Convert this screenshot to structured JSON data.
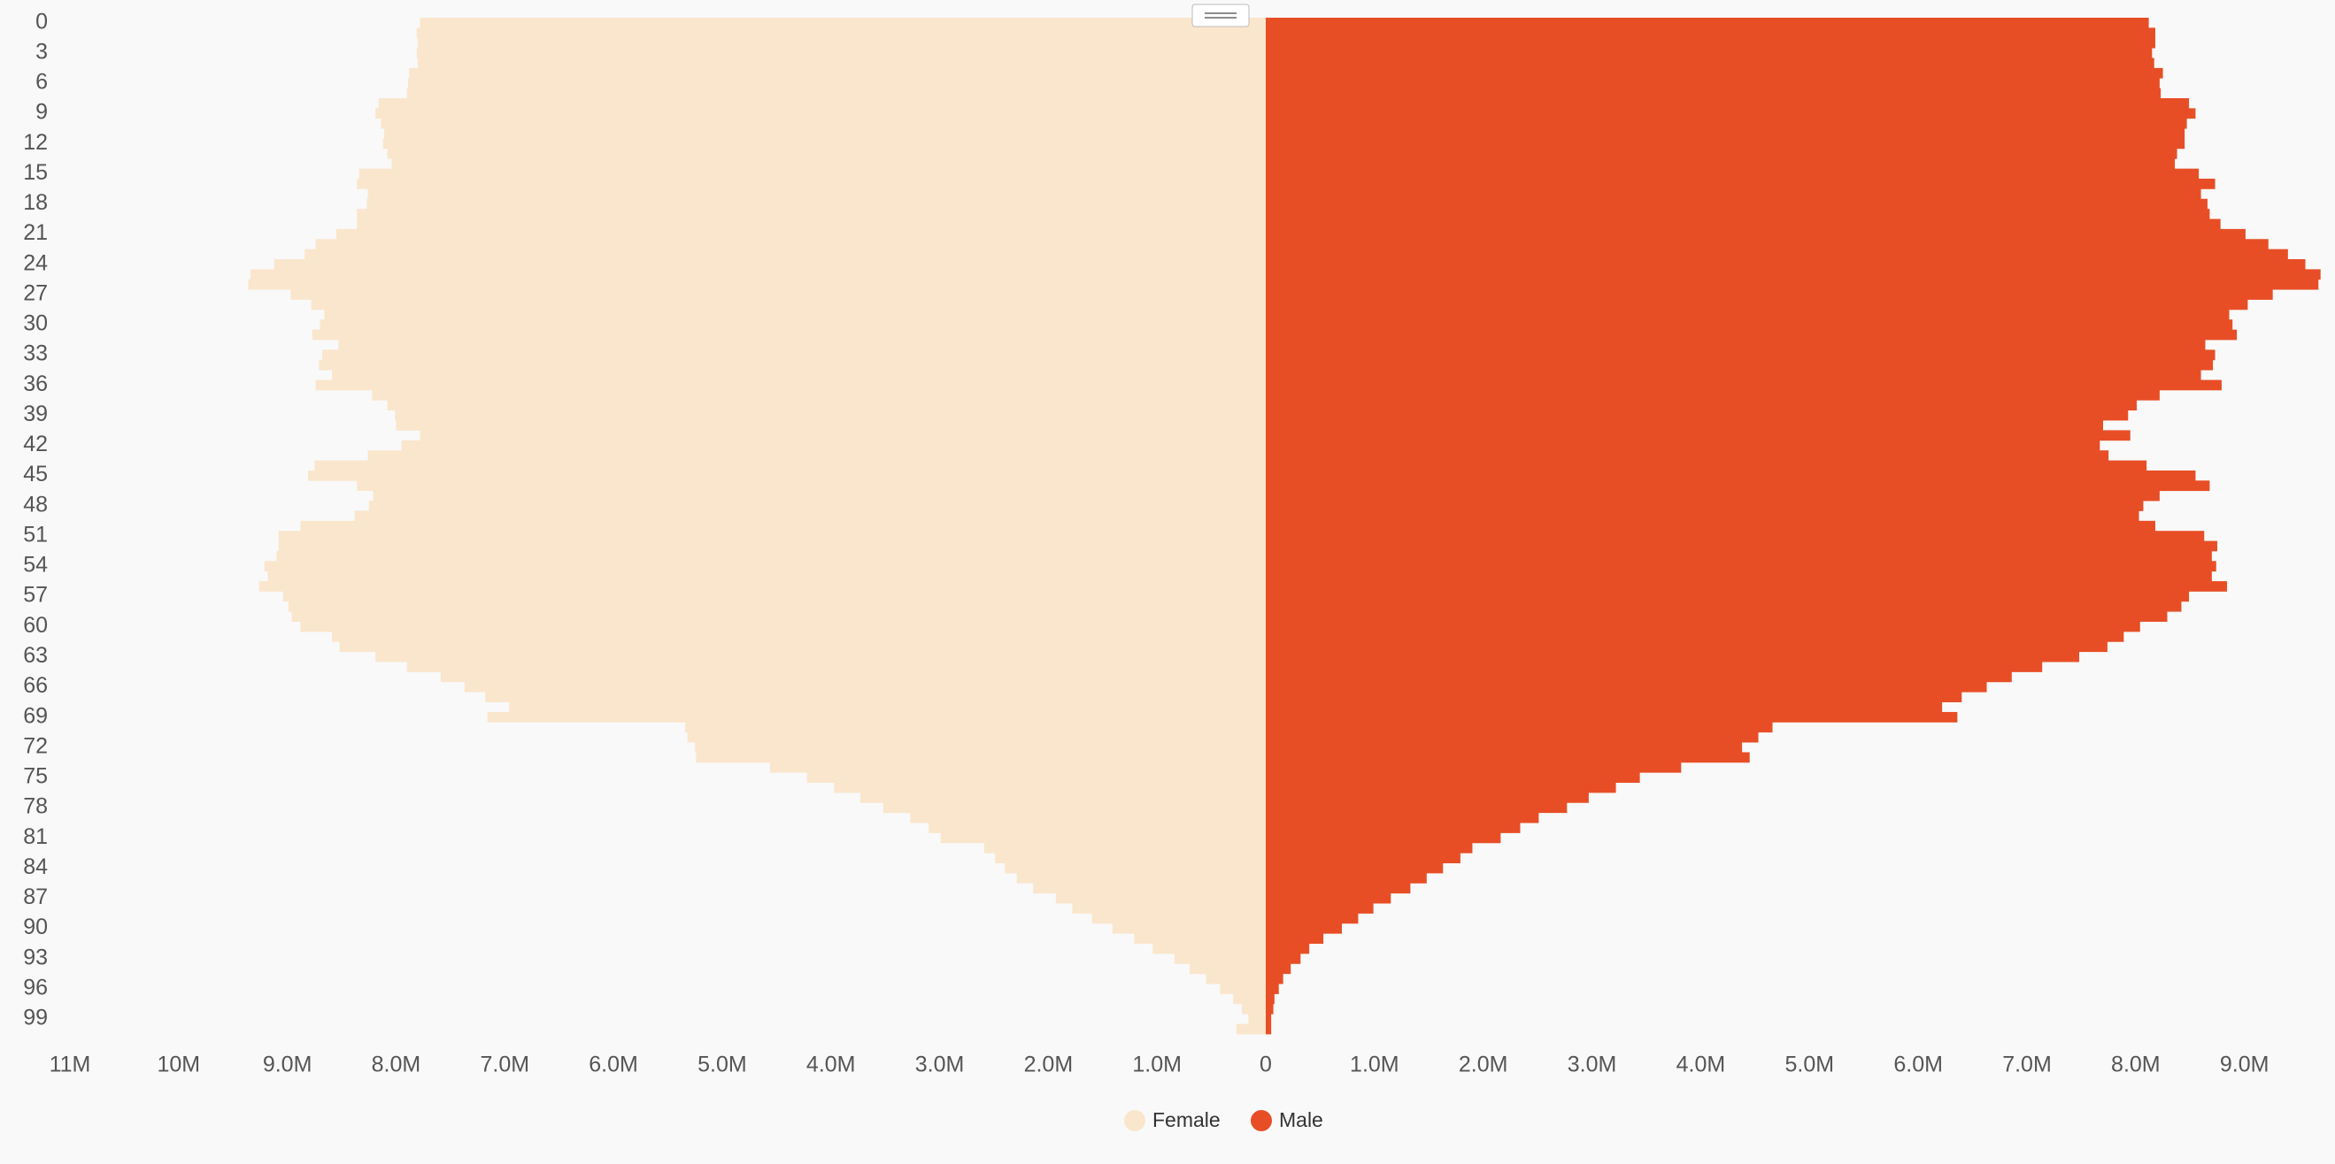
{
  "chart_data": {
    "type": "pyramid",
    "categories": [
      "0",
      null,
      null,
      "3",
      null,
      null,
      "6",
      null,
      null,
      "9",
      null,
      null,
      "12",
      null,
      null,
      "15",
      null,
      null,
      "18",
      null,
      null,
      "21",
      null,
      null,
      "24",
      null,
      null,
      "27",
      null,
      null,
      "30",
      null,
      null,
      "33",
      null,
      null,
      "36",
      null,
      null,
      "39",
      null,
      null,
      "42",
      null,
      null,
      "45",
      null,
      null,
      "48",
      null,
      null,
      "51",
      null,
      null,
      "54",
      null,
      null,
      "57",
      null,
      null,
      "60",
      null,
      null,
      "63",
      null,
      null,
      "66",
      null,
      null,
      "69",
      null,
      null,
      "72",
      null,
      null,
      "75",
      null,
      null,
      "78",
      null,
      null,
      "81",
      null,
      null,
      "84",
      null,
      null,
      "87",
      null,
      null,
      "90",
      null,
      null,
      "93",
      null,
      null,
      "96",
      null,
      null,
      "99",
      null
    ],
    "series": [
      {
        "name": "Female",
        "color": "#fae6cd",
        "side": "left",
        "values": [
          7780000,
          7810000,
          7800000,
          7810000,
          7800000,
          7880000,
          7890000,
          7900000,
          8160000,
          8190000,
          8140000,
          8110000,
          8120000,
          8080000,
          8040000,
          8340000,
          8360000,
          8260000,
          8270000,
          8360000,
          8360000,
          8550000,
          8740000,
          8840000,
          9120000,
          9340000,
          9360000,
          8970000,
          8780000,
          8660000,
          8700000,
          8770000,
          8530000,
          8680000,
          8710000,
          8590000,
          8740000,
          8220000,
          8080000,
          8010000,
          8000000,
          7780000,
          7950000,
          8260000,
          8750000,
          8810000,
          8360000,
          8210000,
          8250000,
          8380000,
          8880000,
          9080000,
          9080000,
          9100000,
          9210000,
          9180000,
          9260000,
          9040000,
          8990000,
          8960000,
          8880000,
          8590000,
          8520000,
          8190000,
          7900000,
          7590000,
          7370000,
          7180000,
          6960000,
          7160000,
          5340000,
          5320000,
          5250000,
          5240000,
          4560000,
          4220000,
          3970000,
          3730000,
          3520000,
          3270000,
          3100000,
          2990000,
          2590000,
          2490000,
          2400000,
          2290000,
          2140000,
          1930000,
          1780000,
          1600000,
          1410000,
          1210000,
          1040000,
          840000,
          700000,
          550000,
          420000,
          300000,
          220000,
          160000,
          270000
        ]
      },
      {
        "name": "Male",
        "color": "#e84e26",
        "side": "right",
        "values": [
          8120000,
          8180000,
          8180000,
          8150000,
          8170000,
          8250000,
          8220000,
          8230000,
          8490000,
          8550000,
          8470000,
          8450000,
          8450000,
          8380000,
          8360000,
          8580000,
          8730000,
          8600000,
          8660000,
          8680000,
          8780000,
          9010000,
          9220000,
          9400000,
          9560000,
          9700000,
          9680000,
          9260000,
          9030000,
          8860000,
          8890000,
          8930000,
          8640000,
          8730000,
          8710000,
          8600000,
          8790000,
          8220000,
          8010000,
          7930000,
          7700000,
          7950000,
          7670000,
          7750000,
          8100000,
          8550000,
          8680000,
          8220000,
          8070000,
          8030000,
          8180000,
          8630000,
          8750000,
          8700000,
          8740000,
          8700000,
          8840000,
          8490000,
          8420000,
          8290000,
          8040000,
          7890000,
          7740000,
          7480000,
          7140000,
          6860000,
          6630000,
          6400000,
          6220000,
          6360000,
          4660000,
          4530000,
          4380000,
          4450000,
          3820000,
          3440000,
          3220000,
          2970000,
          2770000,
          2510000,
          2340000,
          2160000,
          1900000,
          1790000,
          1630000,
          1480000,
          1330000,
          1150000,
          990000,
          850000,
          700000,
          530000,
          400000,
          320000,
          230000,
          160000,
          120000,
          80000,
          70000,
          50000,
          50000
        ]
      }
    ],
    "xlim_left": [
      11000000,
      0
    ],
    "xticks_left": [
      {
        "value": 11000000,
        "label": "11M"
      },
      {
        "value": 10000000,
        "label": "10M"
      },
      {
        "value": 9000000,
        "label": "9.0M"
      },
      {
        "value": 8000000,
        "label": "8.0M"
      },
      {
        "value": 7000000,
        "label": "7.0M"
      },
      {
        "value": 6000000,
        "label": "6.0M"
      },
      {
        "value": 5000000,
        "label": "5.0M"
      },
      {
        "value": 4000000,
        "label": "4.0M"
      },
      {
        "value": 3000000,
        "label": "3.0M"
      },
      {
        "value": 2000000,
        "label": "2.0M"
      },
      {
        "value": 1000000,
        "label": "1.0M"
      },
      0
    ],
    "xlim_right": [
      0,
      9800000
    ],
    "xticks_right": [
      {
        "value": 1000000,
        "label": "1.0M"
      },
      {
        "value": 2000000,
        "label": "2.0M"
      },
      {
        "value": 3000000,
        "label": "3.0M"
      },
      {
        "value": 4000000,
        "label": "4.0M"
      },
      {
        "value": 5000000,
        "label": "5.0M"
      },
      {
        "value": 6000000,
        "label": "6.0M"
      },
      {
        "value": 7000000,
        "label": "7.0M"
      },
      {
        "value": 8000000,
        "label": "8.0M"
      },
      {
        "value": 9000000,
        "label": "9.0M"
      }
    ],
    "legend": "bottom"
  }
}
